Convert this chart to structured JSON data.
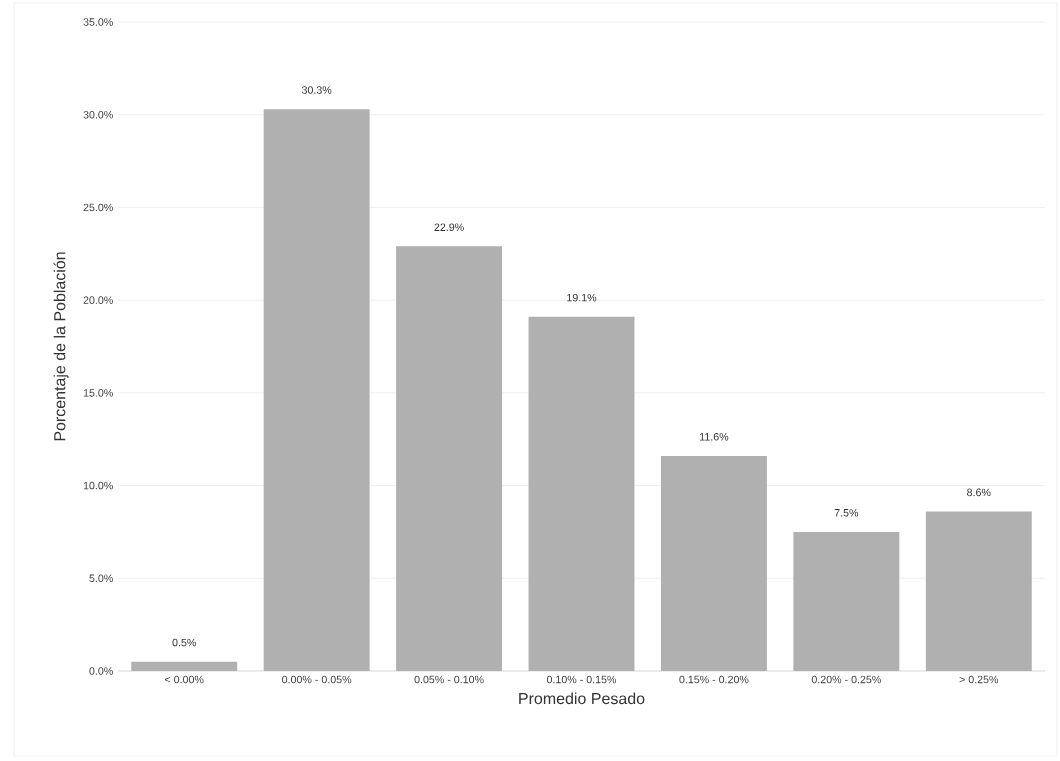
{
  "chart_data": {
    "type": "bar",
    "xlabel": "Promedio Pesado",
    "ylabel": "Porcentaje de la Población",
    "categories": [
      "< 0.00%",
      "0.00% - 0.05%",
      "0.05% - 0.10%",
      "0.10% - 0.15%",
      "0.15% - 0.20%",
      "0.20% - 0.25%",
      "> 0.25%"
    ],
    "values": [
      0.5,
      30.3,
      22.9,
      19.1,
      11.6,
      7.5,
      8.6
    ],
    "value_labels": [
      "0.5%",
      "30.3%",
      "22.9%",
      "19.1%",
      "11.6%",
      "7.5%",
      "8.6%"
    ],
    "color": "#b0b0b0",
    "ylim": [
      0,
      35
    ],
    "yticks": [
      {
        "value": 0,
        "label": "0.0%"
      },
      {
        "value": 5,
        "label": "5.0%"
      },
      {
        "value": 10,
        "label": "10.0%"
      },
      {
        "value": 15,
        "label": "15.0%"
      },
      {
        "value": 20,
        "label": "20.0%"
      },
      {
        "value": 25,
        "label": "25.0%"
      },
      {
        "value": 30,
        "label": "30.0%"
      },
      {
        "value": 35,
        "label": "35.0%"
      }
    ],
    "grid": "y"
  }
}
